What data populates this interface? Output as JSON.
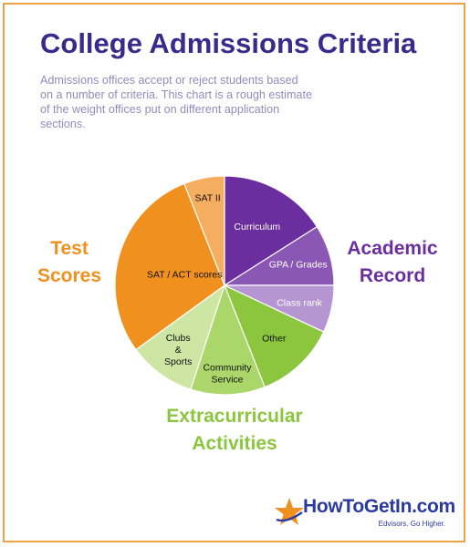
{
  "title": "College Admissions Criteria",
  "subtitle": "Admissions offices accept or reject students based on a number of criteria. This chart is a rough estimate of the weight offices put on different application sections.",
  "groups": {
    "test": "Test\nScores",
    "academic": "Academic\nRecord",
    "extra": "Extracurricular\nActivities"
  },
  "brand": {
    "name": "HowToGetIn.com",
    "tagline": "Edvisors. Go Higher."
  },
  "colors": {
    "frame": "#f0a24a",
    "title": "#3a2a8c",
    "test": "#f0901e",
    "academic": "#6a2e9e",
    "extra": "#8cc63f"
  },
  "chart_data": {
    "type": "pie",
    "slices": [
      {
        "label": "Curriculum",
        "value": 16,
        "color": "#6a2e9e",
        "text_color": "#ffffff"
      },
      {
        "label": "GPA / Grades",
        "value": 9,
        "color": "#8a57b5",
        "text_color": "#ffffff"
      },
      {
        "label": "Class rank",
        "value": 7,
        "color": "#b596d3",
        "text_color": "#ffffff"
      },
      {
        "label": "Other",
        "value": 12,
        "color": "#8cc63f",
        "text_color": "#111111"
      },
      {
        "label": "Community Service",
        "value": 11,
        "color": "#abd66a",
        "text_color": "#111111"
      },
      {
        "label": "Clubs & Sports",
        "value": 10,
        "color": "#cde6a4",
        "text_color": "#111111"
      },
      {
        "label": "SAT / ACT scores",
        "value": 29,
        "color": "#f0901e",
        "text_color": "#111111"
      },
      {
        "label": "SAT II",
        "value": 6,
        "color": "#f5ad5f",
        "text_color": "#111111"
      }
    ]
  }
}
